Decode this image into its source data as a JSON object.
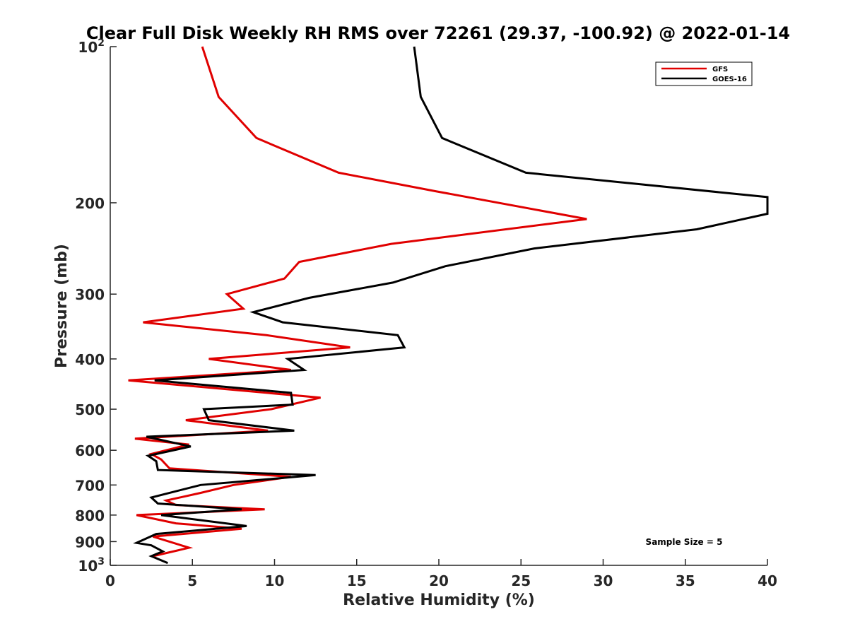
{
  "chart_data": {
    "type": "line",
    "title": "Clear Full Disk Weekly RH RMS over 72261 (29.37, -100.92) @ 2022-01-14",
    "xlabel": "Relative Humidity (%)",
    "ylabel": "Pressure (mb)",
    "xlim": [
      0,
      40
    ],
    "ylim": [
      100,
      1000
    ],
    "y_scale": "log",
    "y_reversed": true,
    "grid": false,
    "legend_position": "top-right",
    "x_ticks": [
      0,
      5,
      10,
      15,
      20,
      25,
      30,
      35,
      40
    ],
    "x_tick_labels": [
      "0",
      "5",
      "10",
      "15",
      "20",
      "25",
      "30",
      "35",
      "40"
    ],
    "y_ticks": [
      100,
      200,
      300,
      400,
      500,
      600,
      700,
      800,
      900,
      1000
    ],
    "y_tick_labels": [
      {
        "base": "10",
        "exp": "2"
      },
      {
        "base": "200",
        "exp": ""
      },
      {
        "base": "300",
        "exp": ""
      },
      {
        "base": "400",
        "exp": ""
      },
      {
        "base": "500",
        "exp": ""
      },
      {
        "base": "600",
        "exp": ""
      },
      {
        "base": "700",
        "exp": ""
      },
      {
        "base": "800",
        "exp": ""
      },
      {
        "base": "900",
        "exp": ""
      },
      {
        "base": "10",
        "exp": "3"
      }
    ],
    "annotation": "Sample Size = 5",
    "series": [
      {
        "name": "GFS",
        "color": "#e00000",
        "points": [
          [
            5.6,
            100
          ],
          [
            6.6,
            125
          ],
          [
            8.9,
            150
          ],
          [
            13.9,
            175
          ],
          [
            19.8,
            190
          ],
          [
            29.0,
            215
          ],
          [
            17.1,
            240
          ],
          [
            11.5,
            260
          ],
          [
            10.6,
            280
          ],
          [
            7.1,
            300
          ],
          [
            8.1,
            320
          ],
          [
            2.0,
            340
          ],
          [
            9.5,
            360
          ],
          [
            14.6,
            380
          ],
          [
            6.0,
            400
          ],
          [
            11.0,
            420
          ],
          [
            1.1,
            440
          ],
          [
            12.8,
            475
          ],
          [
            9.8,
            500
          ],
          [
            4.6,
            525
          ],
          [
            9.6,
            550
          ],
          [
            1.5,
            570
          ],
          [
            4.8,
            585
          ],
          [
            2.5,
            610
          ],
          [
            3.1,
            625
          ],
          [
            3.6,
            650
          ],
          [
            11.0,
            675
          ],
          [
            7.5,
            700
          ],
          [
            5.5,
            725
          ],
          [
            3.4,
            750
          ],
          [
            4.0,
            765
          ],
          [
            9.4,
            780
          ],
          [
            1.6,
            800
          ],
          [
            4.0,
            830
          ],
          [
            8.0,
            850
          ],
          [
            2.6,
            880
          ],
          [
            4.8,
            925
          ],
          [
            2.6,
            960
          ]
        ]
      },
      {
        "name": "GOES-16",
        "color": "#000000",
        "points": [
          [
            18.5,
            100
          ],
          [
            18.9,
            125
          ],
          [
            20.2,
            150
          ],
          [
            25.3,
            175
          ],
          [
            40.0,
            195
          ],
          [
            40.0,
            210
          ],
          [
            35.7,
            225
          ],
          [
            25.8,
            245
          ],
          [
            20.4,
            265
          ],
          [
            17.2,
            285
          ],
          [
            12.1,
            305
          ],
          [
            8.7,
            325
          ],
          [
            10.5,
            340
          ],
          [
            17.5,
            360
          ],
          [
            17.9,
            380
          ],
          [
            10.8,
            400
          ],
          [
            11.8,
            420
          ],
          [
            2.7,
            440
          ],
          [
            11.0,
            465
          ],
          [
            11.1,
            490
          ],
          [
            5.7,
            500
          ],
          [
            6.0,
            525
          ],
          [
            11.2,
            550
          ],
          [
            2.2,
            565
          ],
          [
            4.9,
            590
          ],
          [
            2.3,
            615
          ],
          [
            2.8,
            630
          ],
          [
            2.9,
            655
          ],
          [
            12.5,
            670
          ],
          [
            5.5,
            700
          ],
          [
            2.5,
            740
          ],
          [
            2.9,
            760
          ],
          [
            8.0,
            780
          ],
          [
            3.1,
            800
          ],
          [
            8.3,
            840
          ],
          [
            2.8,
            870
          ],
          [
            1.6,
            905
          ],
          [
            2.5,
            915
          ],
          [
            3.2,
            940
          ],
          [
            2.5,
            960
          ],
          [
            3.5,
            990
          ]
        ]
      }
    ]
  }
}
